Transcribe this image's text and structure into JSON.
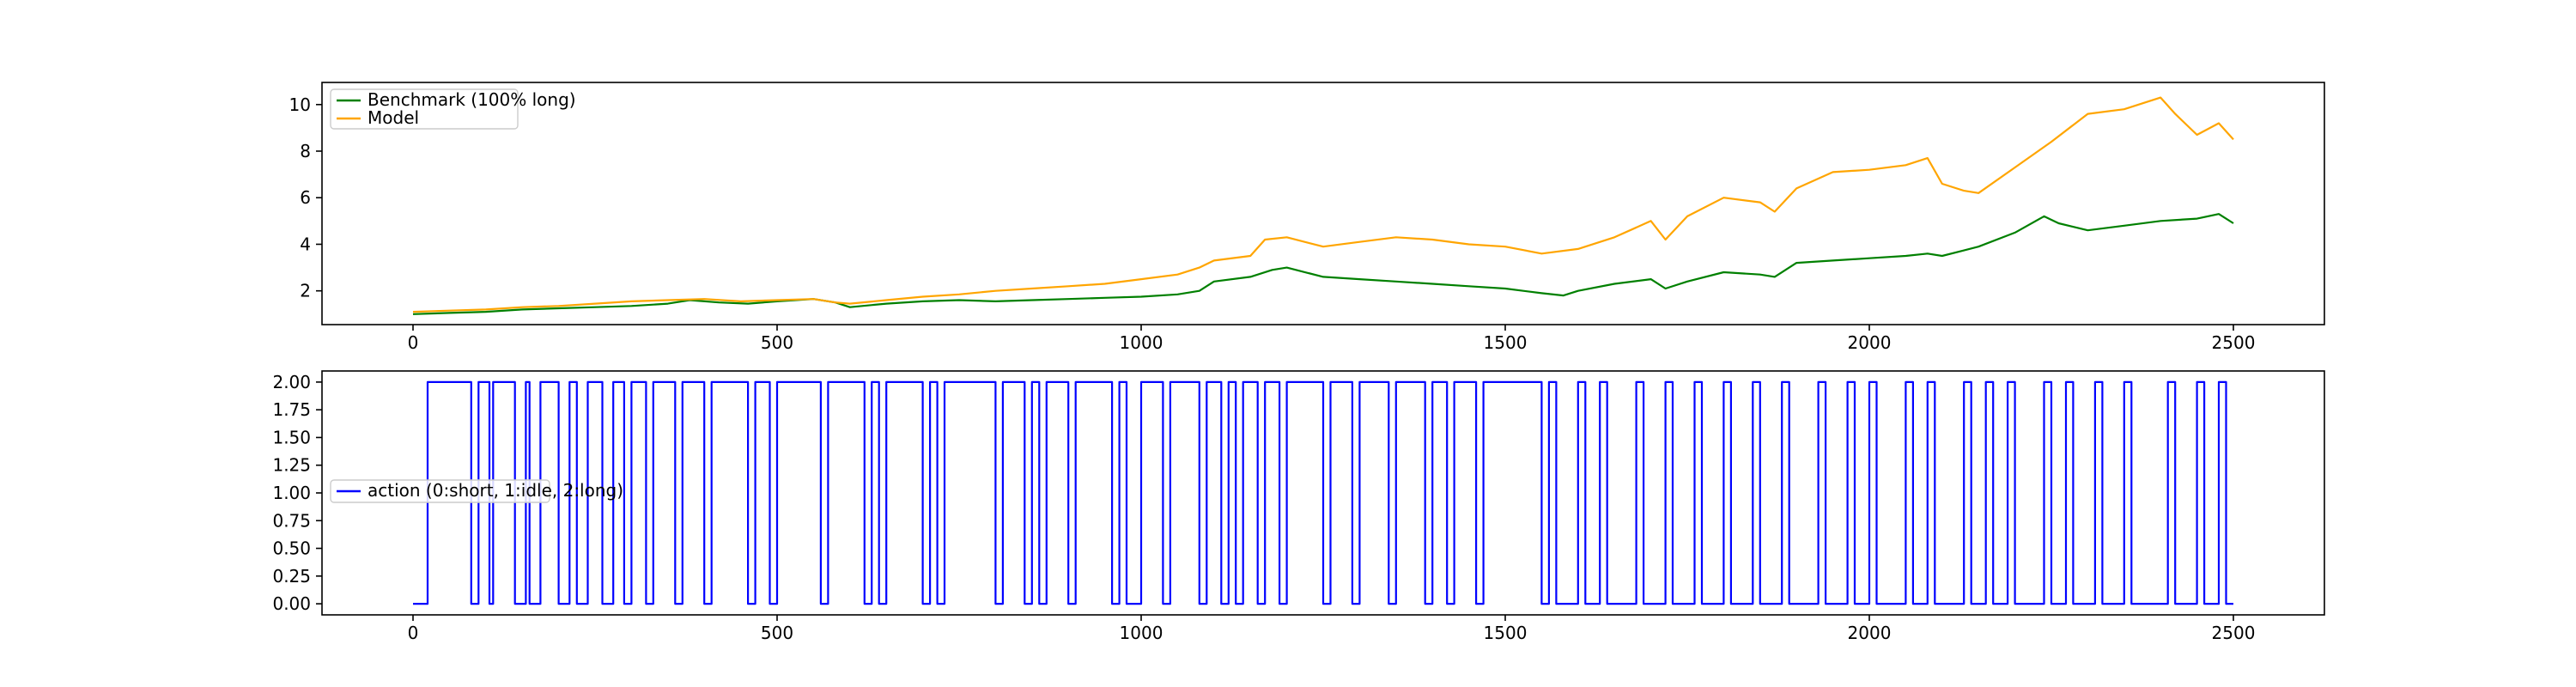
{
  "chart_data": [
    {
      "type": "line",
      "title": "",
      "xlabel": "",
      "ylabel": "",
      "xlim": [
        -125,
        2625
      ],
      "ylim": [
        0.55,
        10.95
      ],
      "xticks": [
        0,
        500,
        1000,
        1500,
        2000,
        2500
      ],
      "xtick_labels": [
        "0",
        "500",
        "1000",
        "1500",
        "2000",
        "2500"
      ],
      "yticks": [
        2,
        4,
        6,
        8,
        10
      ],
      "ytick_labels": [
        "2",
        "4",
        "6",
        "8",
        "10"
      ],
      "grid": false,
      "legend": "upper-left",
      "series": [
        {
          "name": "Benchmark (100% long)",
          "color": "#008000",
          "x": [
            0,
            50,
            100,
            150,
            200,
            250,
            300,
            350,
            380,
            420,
            460,
            500,
            550,
            580,
            600,
            650,
            700,
            750,
            800,
            850,
            900,
            950,
            1000,
            1050,
            1080,
            1100,
            1150,
            1180,
            1200,
            1250,
            1300,
            1350,
            1400,
            1450,
            1500,
            1550,
            1580,
            1600,
            1650,
            1700,
            1720,
            1750,
            1800,
            1850,
            1870,
            1900,
            1950,
            2000,
            2050,
            2080,
            2100,
            2150,
            2200,
            2240,
            2260,
            2300,
            2350,
            2400,
            2450,
            2480,
            2500
          ],
          "y": [
            1.0,
            1.05,
            1.1,
            1.2,
            1.25,
            1.3,
            1.35,
            1.45,
            1.6,
            1.5,
            1.45,
            1.55,
            1.65,
            1.5,
            1.3,
            1.45,
            1.55,
            1.6,
            1.55,
            1.6,
            1.65,
            1.7,
            1.75,
            1.85,
            2.0,
            2.4,
            2.6,
            2.9,
            3.0,
            2.6,
            2.5,
            2.4,
            2.3,
            2.2,
            2.1,
            1.9,
            1.8,
            2.0,
            2.3,
            2.5,
            2.1,
            2.4,
            2.8,
            2.7,
            2.6,
            3.2,
            3.3,
            3.4,
            3.5,
            3.6,
            3.5,
            3.9,
            4.5,
            5.2,
            4.9,
            4.6,
            4.8,
            5.0,
            5.1,
            5.3,
            4.9
          ]
        },
        {
          "name": "Model",
          "color": "#ffa500",
          "x": [
            0,
            50,
            100,
            150,
            200,
            250,
            300,
            350,
            400,
            450,
            500,
            550,
            580,
            600,
            650,
            700,
            750,
            800,
            850,
            900,
            950,
            1000,
            1050,
            1080,
            1100,
            1150,
            1170,
            1200,
            1250,
            1300,
            1350,
            1400,
            1450,
            1500,
            1550,
            1600,
            1650,
            1700,
            1720,
            1750,
            1800,
            1850,
            1870,
            1900,
            1950,
            2000,
            2050,
            2080,
            2100,
            2130,
            2150,
            2200,
            2250,
            2300,
            2350,
            2400,
            2420,
            2450,
            2480,
            2500
          ],
          "y": [
            1.1,
            1.15,
            1.2,
            1.3,
            1.35,
            1.45,
            1.55,
            1.6,
            1.65,
            1.55,
            1.6,
            1.65,
            1.5,
            1.45,
            1.6,
            1.75,
            1.85,
            2.0,
            2.1,
            2.2,
            2.3,
            2.5,
            2.7,
            3.0,
            3.3,
            3.5,
            4.2,
            4.3,
            3.9,
            4.1,
            4.3,
            4.2,
            4.0,
            3.9,
            3.6,
            3.8,
            4.3,
            5.0,
            4.2,
            5.2,
            6.0,
            5.8,
            5.4,
            6.4,
            7.1,
            7.2,
            7.4,
            7.7,
            6.6,
            6.3,
            6.2,
            7.3,
            8.4,
            9.6,
            9.8,
            10.3,
            9.6,
            8.7,
            9.2,
            8.5
          ]
        }
      ]
    },
    {
      "type": "line",
      "title": "",
      "xlabel": "",
      "ylabel": "",
      "xlim": [
        -125,
        2625
      ],
      "ylim": [
        -0.1,
        2.1
      ],
      "xticks": [
        0,
        500,
        1000,
        1500,
        2000,
        2500
      ],
      "xtick_labels": [
        "0",
        "500",
        "1000",
        "1500",
        "2000",
        "2500"
      ],
      "yticks": [
        0.0,
        0.25,
        0.5,
        0.75,
        1.0,
        1.25,
        1.5,
        1.75,
        2.0
      ],
      "ytick_labels": [
        "0.00",
        "0.25",
        "0.50",
        "0.75",
        "1.00",
        "1.25",
        "1.50",
        "1.75",
        "2.00"
      ],
      "grid": false,
      "legend": "center-left",
      "series": [
        {
          "name": "action (0:short, 1:idle, 2:long)",
          "color": "#0000ff",
          "step": true,
          "x": [
            0,
            10,
            20,
            80,
            90,
            105,
            110,
            140,
            155,
            160,
            175,
            200,
            215,
            225,
            240,
            260,
            275,
            290,
            300,
            320,
            330,
            360,
            370,
            400,
            410,
            460,
            470,
            490,
            500,
            560,
            570,
            620,
            630,
            640,
            650,
            700,
            710,
            720,
            730,
            800,
            810,
            840,
            850,
            860,
            870,
            900,
            910,
            960,
            970,
            980,
            1000,
            1030,
            1040,
            1080,
            1090,
            1110,
            1120,
            1130,
            1140,
            1160,
            1170,
            1190,
            1200,
            1250,
            1260,
            1290,
            1300,
            1340,
            1350,
            1390,
            1400,
            1420,
            1430,
            1460,
            1470,
            1500,
            1550,
            1560,
            1570,
            1600,
            1610,
            1630,
            1640,
            1680,
            1690,
            1720,
            1730,
            1760,
            1770,
            1800,
            1810,
            1840,
            1850,
            1880,
            1890,
            1930,
            1940,
            1970,
            1980,
            2000,
            2010,
            2050,
            2060,
            2080,
            2090,
            2130,
            2140,
            2160,
            2170,
            2190,
            2200,
            2240,
            2250,
            2270,
            2280,
            2310,
            2320,
            2350,
            2360,
            2410,
            2420,
            2450,
            2460,
            2480,
            2490,
            2500
          ],
          "y": [
            0,
            0,
            2,
            0,
            2,
            0,
            2,
            0,
            2,
            0,
            2,
            0,
            2,
            0,
            2,
            0,
            2,
            0,
            2,
            0,
            2,
            0,
            2,
            0,
            2,
            0,
            2,
            0,
            2,
            0,
            2,
            0,
            2,
            0,
            2,
            0,
            2,
            0,
            2,
            0,
            2,
            0,
            2,
            0,
            2,
            0,
            2,
            0,
            2,
            0,
            2,
            0,
            2,
            0,
            2,
            0,
            2,
            0,
            2,
            0,
            2,
            0,
            2,
            0,
            2,
            0,
            2,
            0,
            2,
            0,
            2,
            0,
            2,
            0,
            2,
            2,
            0,
            2,
            0,
            2,
            0,
            2,
            0,
            2,
            0,
            2,
            0,
            2,
            0,
            2,
            0,
            2,
            0,
            2,
            0,
            2,
            0,
            2,
            0,
            2,
            0,
            2,
            0,
            2,
            0,
            2,
            0,
            2,
            0,
            2,
            0,
            2,
            0,
            2,
            0,
            2,
            0,
            2,
            0,
            2,
            0,
            2,
            0,
            2,
            0,
            0
          ]
        }
      ]
    }
  ]
}
